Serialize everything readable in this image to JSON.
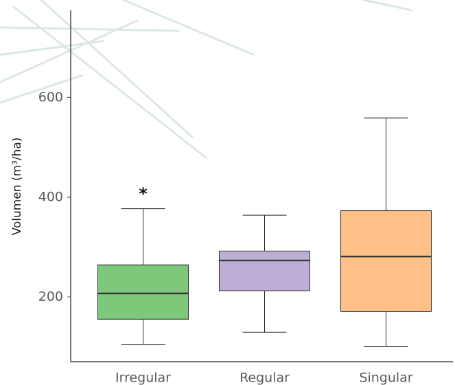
{
  "chart_data": {
    "type": "box",
    "y_label": "Volumen (m³/ha)",
    "categories": [
      "Irregular",
      "Regular",
      "Singular"
    ],
    "colors": [
      "#7dc87a",
      "#bcaed5",
      "#fdc086"
    ],
    "boxes": [
      {
        "low": 105,
        "q1": 155,
        "median": 207,
        "q3": 264,
        "high": 377
      },
      {
        "low": 129,
        "q1": 212,
        "median": 273,
        "q3": 292,
        "high": 364
      },
      {
        "low": 101,
        "q1": 171,
        "median": 281,
        "q3": 373,
        "high": 559
      }
    ],
    "annotations": [
      {
        "text": "*",
        "category": 0,
        "y": 405
      }
    ],
    "ylim": [
      70,
      775
    ],
    "yticks": [
      200,
      400,
      600
    ]
  }
}
